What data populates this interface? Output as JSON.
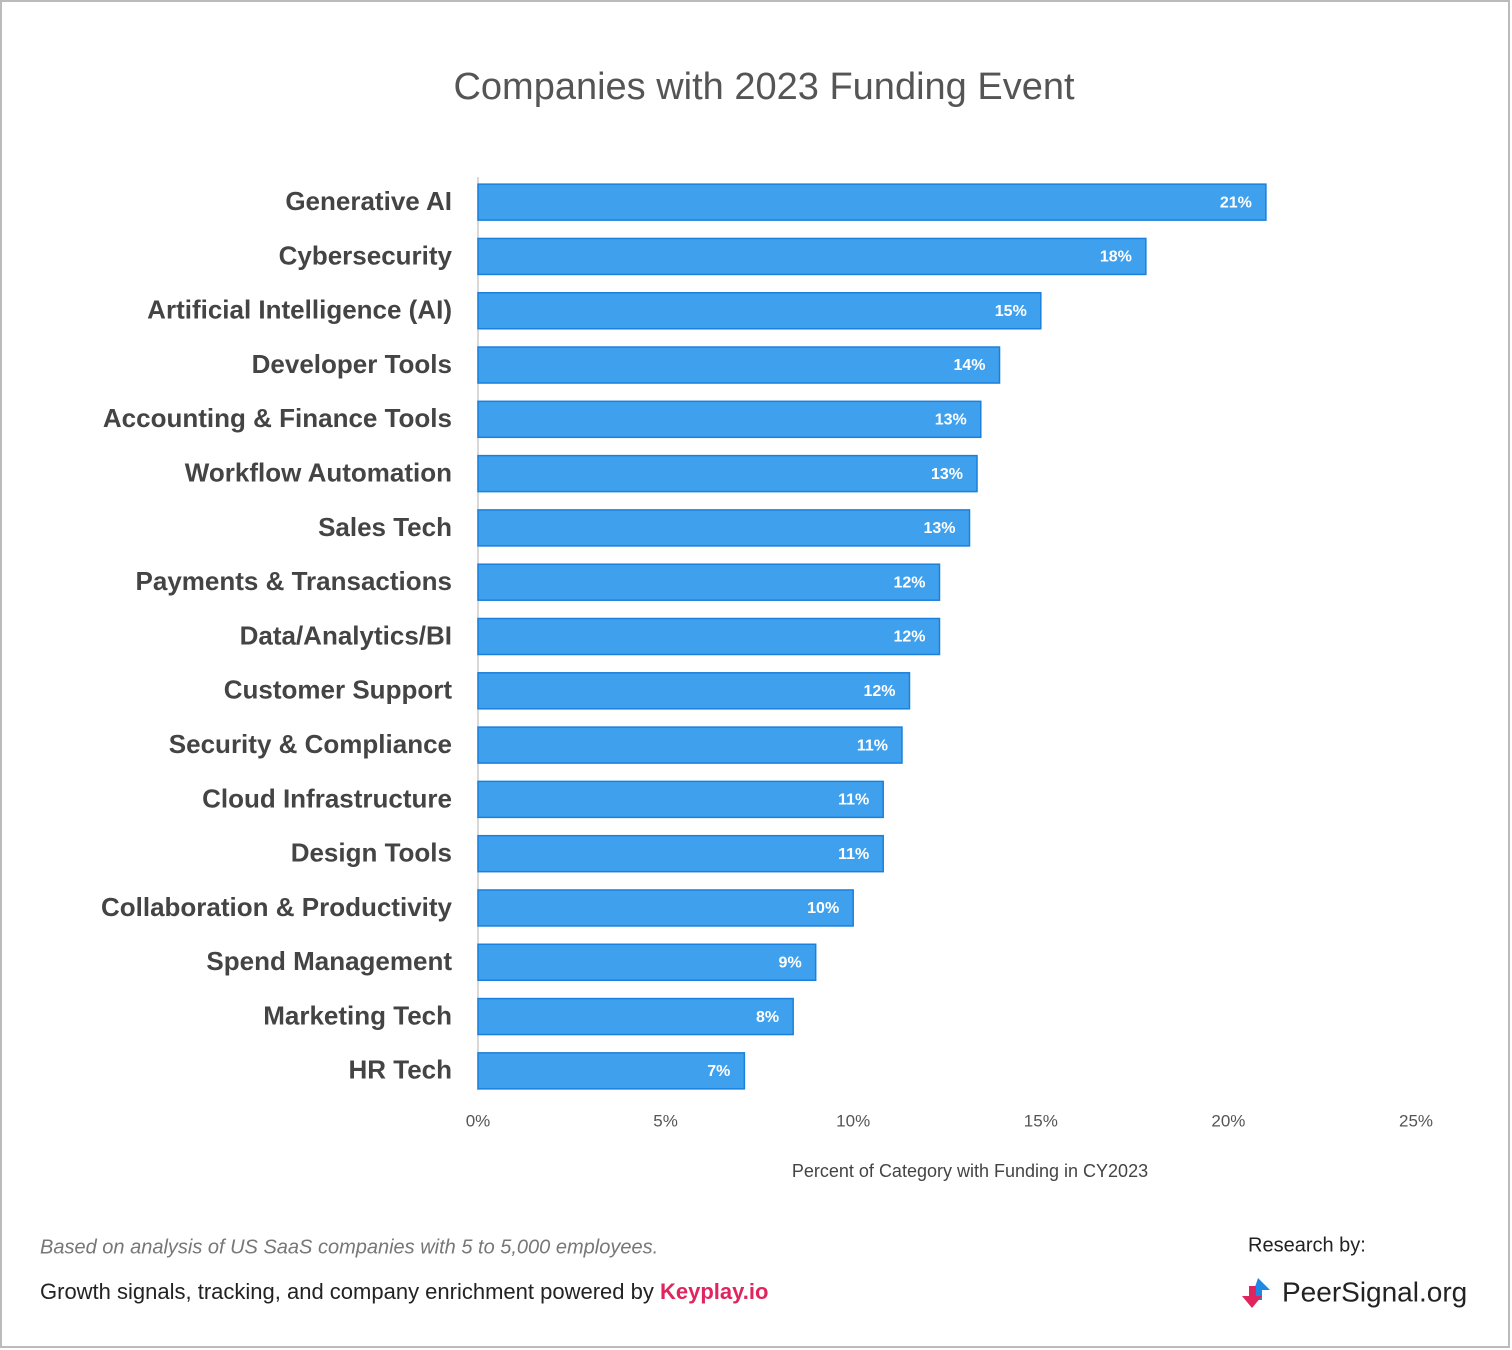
{
  "chart_data": {
    "type": "bar",
    "title": "Companies with 2023 Funding Event",
    "x_label": "Percent of Category with Funding in CY2023",
    "categories": [
      "Generative AI",
      "Cybersecurity",
      "Artificial Intelligence (AI)",
      "Developer Tools",
      "Accounting & Finance Tools",
      "Workflow Automation",
      "Sales Tech",
      "Payments & Transactions",
      "Data/Analytics/BI",
      "Customer Support",
      "Security & Compliance",
      "Cloud Infrastructure",
      "Design Tools",
      "Collaboration & Productivity",
      "Spend Management",
      "Marketing Tech",
      "HR Tech"
    ],
    "values": [
      21.0,
      17.8,
      15.0,
      13.9,
      13.4,
      13.3,
      13.1,
      12.3,
      12.3,
      11.5,
      11.3,
      10.8,
      10.8,
      10.0,
      9.0,
      8.4,
      7.1
    ],
    "value_labels": [
      "21%",
      "18%",
      "15%",
      "14%",
      "13%",
      "13%",
      "13%",
      "12%",
      "12%",
      "12%",
      "11%",
      "11%",
      "11%",
      "10%",
      "9%",
      "8%",
      "7%"
    ],
    "color": "#3fa0ee",
    "xlim": [
      0,
      25
    ],
    "xticks": [
      {
        "value": 0,
        "label": "0%"
      },
      {
        "value": 5,
        "label": "5%"
      },
      {
        "value": 10,
        "label": "10%"
      },
      {
        "value": 15,
        "label": "15%"
      },
      {
        "value": 20,
        "label": "20%"
      },
      {
        "value": 25,
        "label": "25%"
      }
    ]
  },
  "footer": {
    "note": "Based on analysis of US SaaS companies with 5 to 5,000 employees.",
    "powered_by": "Growth signals, tracking, and company enrichment powered by",
    "powered_by_brand": "Keyplay.io",
    "research_by": "Research by:",
    "brand": "PeerSignal.org"
  }
}
